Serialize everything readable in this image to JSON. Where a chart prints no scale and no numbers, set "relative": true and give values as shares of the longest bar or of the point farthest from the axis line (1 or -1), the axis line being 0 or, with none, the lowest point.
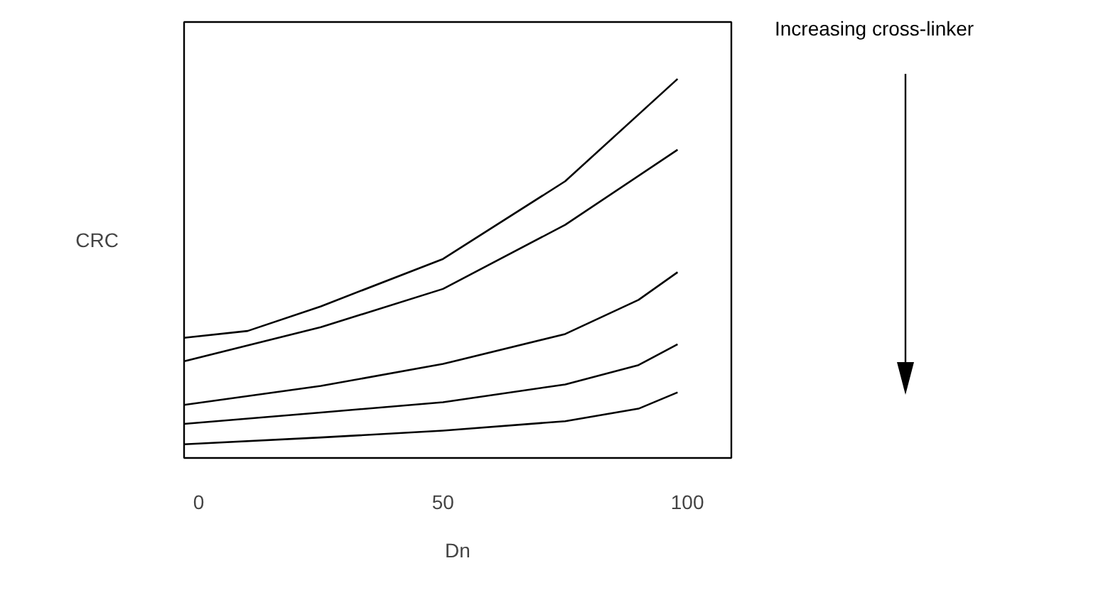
{
  "chart_data": {
    "type": "line",
    "relative": true,
    "xlabel": "Dn",
    "ylabel": "CRC",
    "xlim": [
      -3,
      109
    ],
    "xticks": [
      0,
      50,
      100
    ],
    "grid": false,
    "marker": "none",
    "line_style": "solid",
    "annotations": [
      "Increasing cross-linker"
    ],
    "series": [
      {
        "color": "#000000",
        "x": [
          -3,
          10,
          25,
          50,
          75,
          98
        ],
        "values": [
          0.317,
          0.335,
          0.4,
          0.525,
          0.73,
          1.0
        ]
      },
      {
        "color": "#000000",
        "x": [
          -3,
          25,
          50,
          75,
          98
        ],
        "values": [
          0.255,
          0.345,
          0.446,
          0.615,
          0.813
        ]
      },
      {
        "color": "#000000",
        "x": [
          -3,
          25,
          50,
          75,
          90,
          98
        ],
        "values": [
          0.14,
          0.19,
          0.248,
          0.327,
          0.417,
          0.49
        ]
      },
      {
        "color": "#000000",
        "x": [
          -3,
          25,
          50,
          75,
          90,
          98
        ],
        "values": [
          0.09,
          0.12,
          0.147,
          0.194,
          0.245,
          0.3
        ]
      },
      {
        "color": "#000000",
        "x": [
          -3,
          25,
          50,
          75,
          90,
          98
        ],
        "values": [
          0.036,
          0.054,
          0.072,
          0.097,
          0.13,
          0.173
        ]
      }
    ]
  }
}
